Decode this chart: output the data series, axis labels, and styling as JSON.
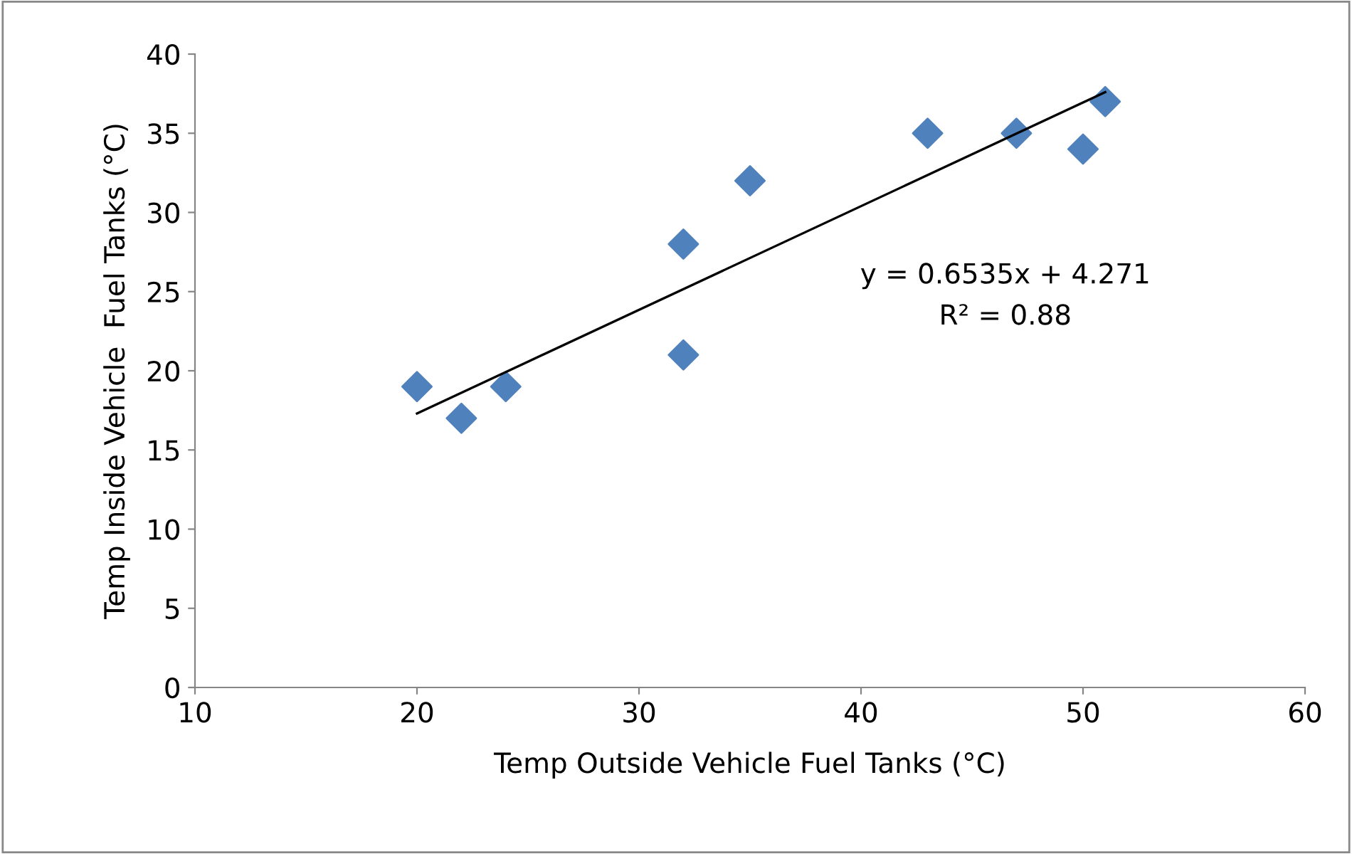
{
  "chart_data": {
    "type": "scatter",
    "xlabel": "Temp Outside Vehicle Fuel Tanks (°C)",
    "ylabel": "Temp Inside Vehicle  Fuel Tanks (°C)",
    "series": [
      {
        "color": "#4f81bd",
        "marker": "diamond",
        "x": [
          20,
          22,
          24,
          32,
          32,
          35,
          43,
          47,
          50,
          51
        ],
        "values": [
          19,
          17,
          19,
          28,
          21,
          32,
          35,
          35,
          34,
          37
        ]
      },
      {
        "type": "line",
        "color": "#000000",
        "marker": "none",
        "line_style": "solid",
        "x": [
          20,
          51
        ],
        "values": [
          17.3,
          37.6
        ]
      }
    ],
    "annotations": [
      "y = 0.6535x + 4.271",
      "R² = 0.88"
    ],
    "xlim": [
      10,
      60
    ],
    "xticks": [
      10,
      20,
      30,
      40,
      50,
      60
    ],
    "ylim": [
      0,
      40
    ],
    "yticks": [
      0,
      5,
      10,
      15,
      20,
      25,
      30,
      35,
      40
    ],
    "grid": false
  }
}
